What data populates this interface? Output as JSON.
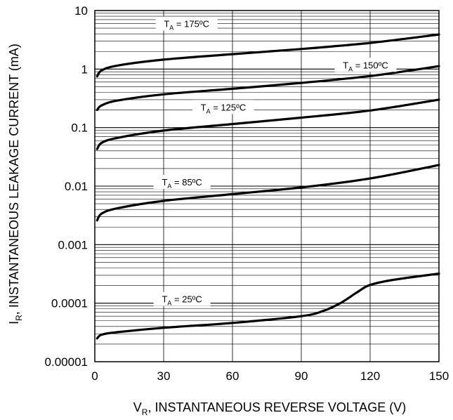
{
  "chart_data": {
    "type": "line",
    "xlabel": {
      "main": "V",
      "sub": "R",
      "rest": ", INSTANTANEOUS REVERSE VOLTAGE (V)"
    },
    "ylabel": {
      "main": "I",
      "sub": "R",
      "rest": ", INSTANTANEOUS LEAKAGE CURRENT (mA)"
    },
    "x_scale": "linear",
    "y_scale": "log",
    "xlim": [
      0,
      150
    ],
    "ylim": [
      1e-05,
      10
    ],
    "grid": true,
    "x_ticks": [
      0,
      30,
      60,
      90,
      120,
      150
    ],
    "x_tick_labels": [
      "0",
      "30",
      "60",
      "90",
      "120",
      "150"
    ],
    "y_ticks": [
      1e-05,
      0.0001,
      0.001,
      0.01,
      0.1,
      1,
      10
    ],
    "y_tick_labels": [
      "0.00001",
      "0.0001",
      "0.001",
      "0.01",
      "0.1",
      "1",
      "10"
    ],
    "series": [
      {
        "label_main": "T",
        "label_sub": "A",
        "label_rest": " = 175ºC",
        "label_at": [
          40,
          6
        ],
        "points": [
          [
            1,
            0.75
          ],
          [
            3,
            0.95
          ],
          [
            10,
            1.15
          ],
          [
            30,
            1.45
          ],
          [
            60,
            1.8
          ],
          [
            90,
            2.2
          ],
          [
            120,
            2.8
          ],
          [
            150,
            3.9
          ]
        ]
      },
      {
        "label_main": "T",
        "label_sub": "A",
        "label_rest": " = 150ºC",
        "label_at": [
          118,
          1.18
        ],
        "points": [
          [
            1,
            0.2
          ],
          [
            3,
            0.24
          ],
          [
            10,
            0.29
          ],
          [
            30,
            0.37
          ],
          [
            60,
            0.46
          ],
          [
            90,
            0.58
          ],
          [
            120,
            0.76
          ],
          [
            150,
            1.12
          ]
        ]
      },
      {
        "label_main": "T",
        "label_sub": "A",
        "label_rest": " = 125ºC",
        "label_at": [
          56,
          0.225
        ],
        "points": [
          [
            1,
            0.043
          ],
          [
            3,
            0.055
          ],
          [
            10,
            0.067
          ],
          [
            30,
            0.089
          ],
          [
            60,
            0.115
          ],
          [
            90,
            0.148
          ],
          [
            120,
            0.196
          ],
          [
            150,
            0.3
          ]
        ]
      },
      {
        "label_main": "T",
        "label_sub": "A",
        "label_rest": " = 85ºC",
        "label_at": [
          38,
          0.0118
        ],
        "points": [
          [
            1,
            0.0026
          ],
          [
            3,
            0.0034
          ],
          [
            10,
            0.0042
          ],
          [
            30,
            0.0056
          ],
          [
            60,
            0.0073
          ],
          [
            90,
            0.0095
          ],
          [
            120,
            0.0135
          ],
          [
            150,
            0.023
          ]
        ]
      },
      {
        "label_main": "T",
        "label_sub": "A",
        "label_rest": " = 25ºC",
        "label_at": [
          38,
          0.000118
        ],
        "points": [
          [
            1,
            2.5e-05
          ],
          [
            3,
            2.9e-05
          ],
          [
            10,
            3.2e-05
          ],
          [
            30,
            3.8e-05
          ],
          [
            60,
            4.6e-05
          ],
          [
            90,
            6e-05
          ],
          [
            100,
            7.5e-05
          ],
          [
            107,
            0.0001
          ],
          [
            115,
            0.00016
          ],
          [
            120,
            0.000205
          ],
          [
            130,
            0.00025
          ],
          [
            150,
            0.00032
          ]
        ]
      }
    ]
  }
}
